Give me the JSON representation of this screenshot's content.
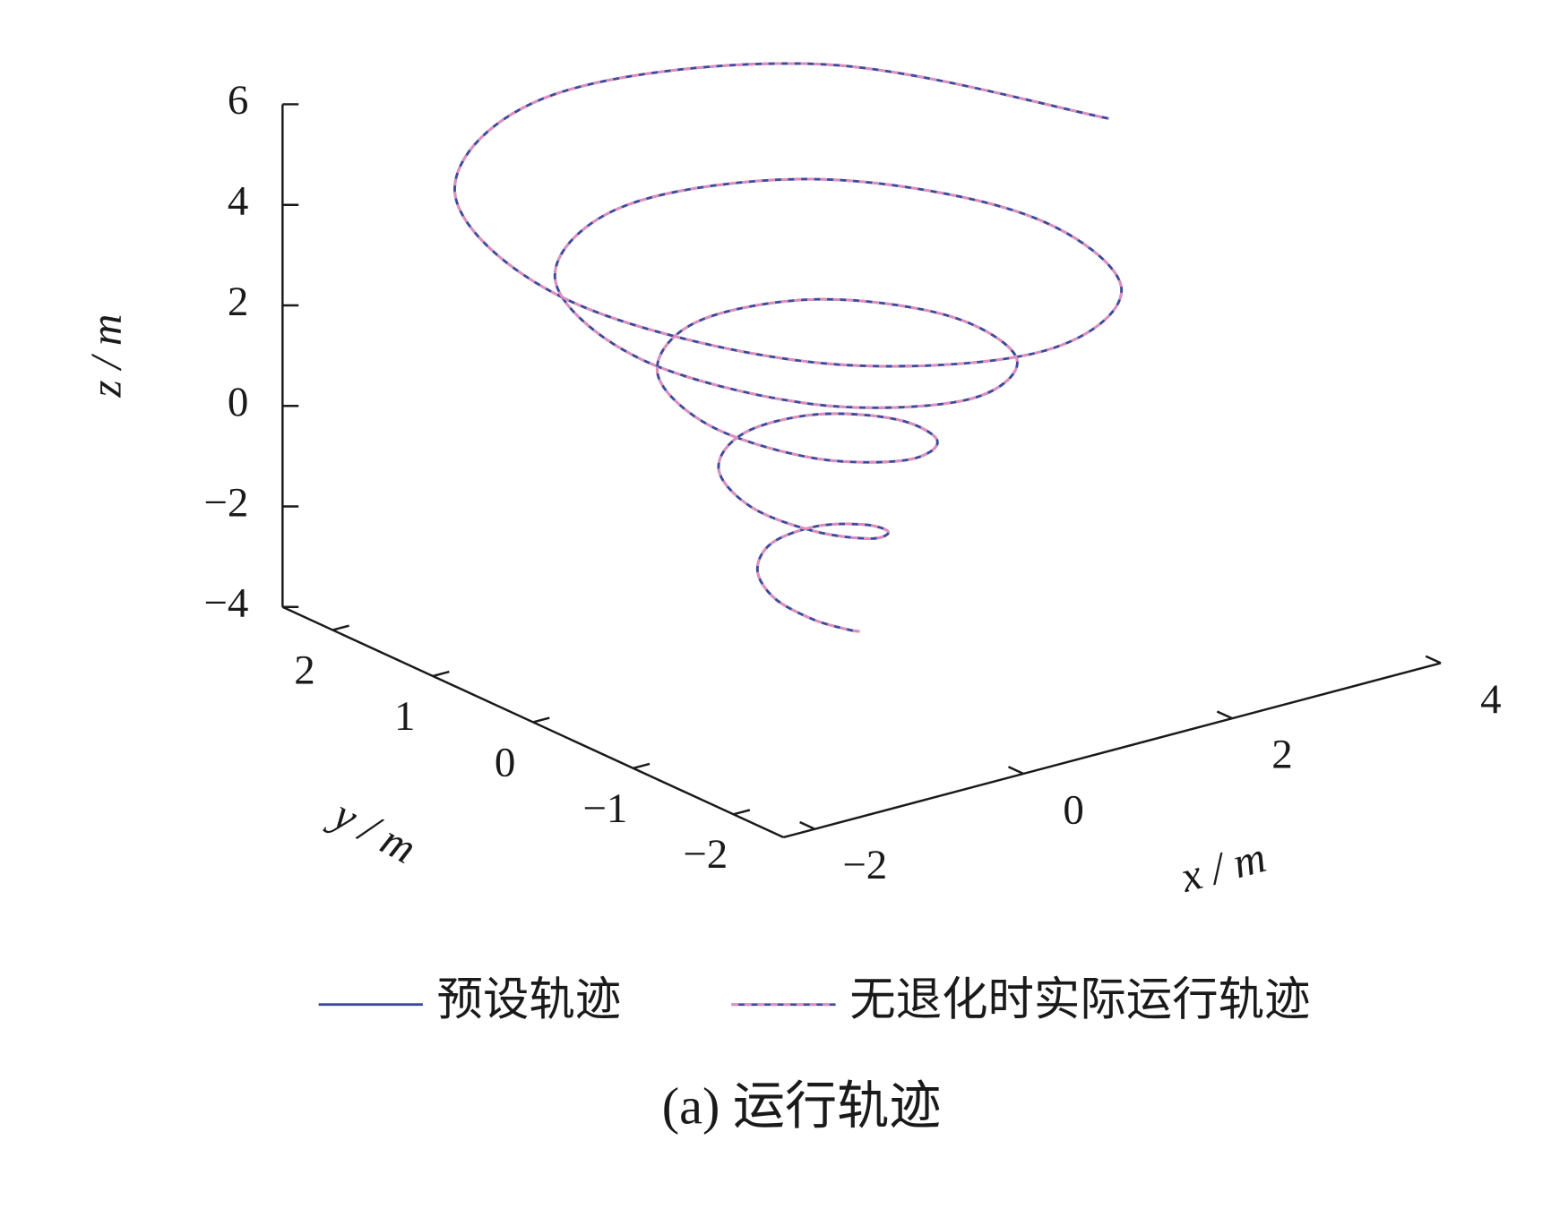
{
  "chart_data": {
    "type": "line3d",
    "caption": "(a) 运行轨迹",
    "xlabel": "x / m",
    "ylabel": "y / m",
    "zlabel": "z / m",
    "xlim": [
      -2.3,
      4
    ],
    "ylim": [
      -2.5,
      2.5
    ],
    "zlim": [
      -4,
      6
    ],
    "xticks": [
      {
        "value": -2,
        "label": "−2"
      },
      0,
      2,
      4
    ],
    "yticks": [
      {
        "value": -2,
        "label": "−2"
      },
      {
        "value": -1,
        "label": "−1"
      },
      0,
      1,
      2
    ],
    "zticks": [
      {
        "value": -4,
        "label": "−4"
      },
      {
        "value": -2,
        "label": "−2"
      },
      0,
      2,
      4,
      6
    ],
    "series": [
      {
        "name": "预设轨迹",
        "color": "#3b4a9c",
        "line_style": "solid",
        "x": [
          0.62,
          0.4,
          0.15,
          0.02,
          0.12,
          0.4,
          0.72,
          0.88,
          0.76,
          0.4,
          -0.01,
          -0.22,
          -0.07,
          0.4,
          0.93,
          1.2,
          1.0,
          0.4,
          -0.28,
          -0.62,
          -0.37,
          0.4,
          1.27,
          1.71,
          1.39,
          0.4,
          -0.72,
          -1.29,
          -0.87,
          0.4,
          1.78,
          2.43,
          1.9,
          0.4,
          -1.22,
          -1.99,
          -1.36,
          0.4,
          2.31,
          3.22
        ],
        "y": [
          -0.22,
          -0.33,
          -0.25,
          0,
          0.28,
          0.43,
          0.32,
          0,
          -0.36,
          -0.55,
          -0.41,
          0,
          0.47,
          0.7,
          0.53,
          0,
          -0.6,
          -0.9,
          -0.68,
          0,
          0.77,
          1.16,
          0.87,
          0,
          -0.99,
          -1.49,
          -1.12,
          0,
          1.27,
          1.87,
          1.38,
          0,
          -1.5,
          -2.2,
          -1.62,
          0,
          1.76,
          2.6,
          1.91,
          0
        ],
        "z": [
          -3.6,
          -3.34,
          -3.08,
          -2.82,
          -2.57,
          -2.32,
          -2.06,
          -1.82,
          -1.57,
          -1.33,
          -1.08,
          -0.85,
          -0.61,
          -0.37,
          -0.14,
          0.09,
          0.32,
          0.55,
          0.77,
          0.99,
          1.21,
          1.43,
          1.65,
          1.86,
          2.07,
          2.28,
          2.49,
          2.69,
          2.89,
          3.09,
          3.29,
          3.49,
          3.68,
          3.87,
          4.06,
          4.25,
          4.43,
          4.62,
          4.8,
          4.97
        ]
      },
      {
        "name": "无退化时实际运行轨迹",
        "color": "#e08fbd",
        "line_style": "dashed",
        "x": [
          0.62,
          0.4,
          0.15,
          0.02,
          0.12,
          0.4,
          0.72,
          0.88,
          0.76,
          0.4,
          -0.01,
          -0.22,
          -0.07,
          0.4,
          0.93,
          1.2,
          1.0,
          0.4,
          -0.28,
          -0.62,
          -0.37,
          0.4,
          1.27,
          1.71,
          1.39,
          0.4,
          -0.72,
          -1.29,
          -0.87,
          0.4,
          1.78,
          2.43,
          1.9,
          0.4,
          -1.22,
          -1.99,
          -1.36,
          0.4,
          2.31,
          3.22
        ],
        "y": [
          -0.22,
          -0.33,
          -0.25,
          0,
          0.28,
          0.43,
          0.32,
          0,
          -0.36,
          -0.55,
          -0.41,
          0,
          0.47,
          0.7,
          0.53,
          0,
          -0.6,
          -0.9,
          -0.68,
          0,
          0.77,
          1.16,
          0.87,
          0,
          -0.99,
          -1.49,
          -1.12,
          0,
          1.27,
          1.87,
          1.38,
          0,
          -1.5,
          -2.2,
          -1.62,
          0,
          1.76,
          2.6,
          1.91,
          0
        ],
        "z": [
          -3.6,
          -3.34,
          -3.08,
          -2.82,
          -2.57,
          -2.32,
          -2.06,
          -1.82,
          -1.57,
          -1.33,
          -1.08,
          -0.85,
          -0.61,
          -0.37,
          -0.14,
          0.09,
          0.32,
          0.55,
          0.77,
          0.99,
          1.21,
          1.43,
          1.65,
          1.86,
          2.07,
          2.28,
          2.49,
          2.69,
          2.89,
          3.09,
          3.29,
          3.49,
          3.68,
          3.87,
          4.06,
          4.25,
          4.43,
          4.62,
          4.8,
          4.97
        ]
      }
    ]
  }
}
